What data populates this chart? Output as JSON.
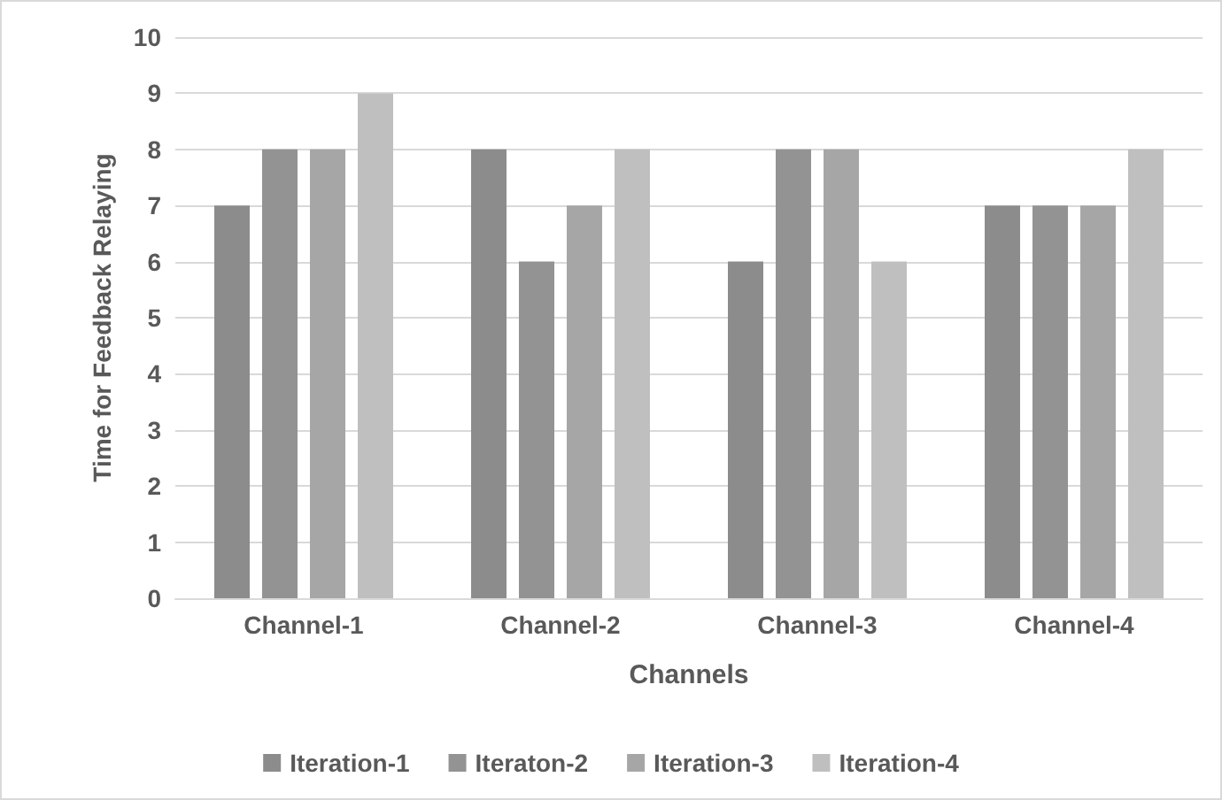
{
  "chart_data": {
    "type": "bar",
    "xlabel": "Channels",
    "ylabel": "Time for Feedback Relaying",
    "categories": [
      "Channel-1",
      "Channel-2",
      "Channel-3",
      "Channel-4"
    ],
    "series": [
      {
        "name": "Iteration-1",
        "color": "#8c8c8c",
        "values": [
          7,
          8,
          6,
          7
        ]
      },
      {
        "name": "Iteraton-2",
        "color": "#939393",
        "values": [
          8,
          6,
          8,
          7
        ]
      },
      {
        "name": "Iteration-3",
        "color": "#a6a6a6",
        "values": [
          8,
          7,
          8,
          7
        ]
      },
      {
        "name": "Iteration-4",
        "color": "#bfbfbf",
        "values": [
          9,
          8,
          6,
          8
        ]
      }
    ],
    "ylim": [
      0,
      10
    ],
    "yticks": [
      0,
      1,
      2,
      3,
      4,
      5,
      6,
      7,
      8,
      9,
      10
    ],
    "grid": "y",
    "legend": "bottom"
  }
}
